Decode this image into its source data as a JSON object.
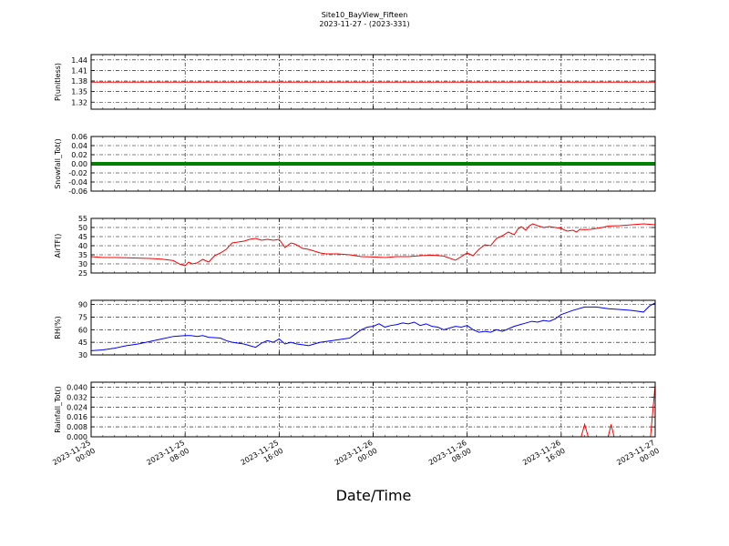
{
  "chart_data": {
    "type": "line",
    "title": "Site10_BayView_Fifteen",
    "subtitle": "2023-11-27 - (2023-331)",
    "xlabel": "Date/Time",
    "x_ticks": [
      "2023-11-25\n00:00",
      "2023-11-25\n08:00",
      "2023-11-25\n16:00",
      "2023-11-26\n00:00",
      "2023-11-26\n08:00",
      "2023-11-26\n16:00",
      "2023-11-27\n00:00"
    ],
    "x_range_hours": [
      0,
      48
    ],
    "grid": true,
    "panels": [
      {
        "ylabel": "P(unitless)",
        "ylim": [
          1.3,
          1.455
        ],
        "yticks": [
          "1.32",
          "1.35",
          "1.38",
          "1.41",
          "1.44"
        ],
        "color": "#ff0000",
        "series": [
          {
            "x": [
              0,
              48
            ],
            "y": [
              1.377,
              1.377
            ]
          }
        ]
      },
      {
        "ylabel": "Snowfall_Tot()",
        "ylim": [
          -0.06,
          0.06
        ],
        "yticks": [
          "-0.06",
          "-0.04",
          "-0.02",
          "0.00",
          "0.02",
          "0.04",
          "0.06"
        ],
        "color": "#008000",
        "marker": true,
        "series": [
          {
            "x": [
              0,
              48
            ],
            "y": [
              0.0,
              0.0
            ]
          }
        ]
      },
      {
        "ylabel": "AirTF()",
        "ylim": [
          25,
          55
        ],
        "yticks": [
          "25",
          "30",
          "35",
          "40",
          "45",
          "50",
          "55"
        ],
        "color": "#ff0000",
        "series": [
          {
            "x": [
              0,
              1,
              2,
              3,
              4,
              5,
              6,
              7,
              7.5,
              8,
              8.3,
              8.6,
              9,
              9.5,
              10,
              10.5,
              11,
              11.5,
              12,
              12.5,
              13,
              13.5,
              14,
              14.5,
              15,
              15.5,
              16,
              16.5,
              17,
              17.3,
              17.6,
              18,
              18.5,
              19,
              19.5,
              20,
              21,
              22,
              23,
              24,
              25,
              26,
              27,
              28,
              29,
              30,
              31,
              32,
              32.5,
              33,
              33.5,
              34,
              34.5,
              35,
              35.5,
              36,
              36.3,
              36.6,
              37,
              37.3,
              37.6,
              38,
              38.5,
              39,
              39.5,
              40,
              40.5,
              41,
              41.3,
              41.6,
              42,
              42.5,
              43,
              43.5,
              44,
              45,
              46,
              47,
              48
            ],
            "y": [
              34,
              33.5,
              33.5,
              33.4,
              33.2,
              33,
              32.6,
              31.8,
              30,
              29,
              31,
              30,
              30.5,
              32.5,
              31,
              34.5,
              36,
              38,
              41.5,
              42,
              42.5,
              43.5,
              44,
              43,
              43.5,
              43,
              43.5,
              39,
              41.5,
              41,
              40,
              38.5,
              38,
              37,
              36,
              35.5,
              35.5,
              35,
              34,
              33.8,
              33.5,
              34,
              34,
              34.5,
              34.8,
              34.3,
              32,
              36,
              34.5,
              38,
              40.5,
              40,
              44,
              45.5,
              47.5,
              46,
              49,
              50.5,
              48.5,
              51,
              52,
              51,
              50,
              50.5,
              50,
              49.5,
              48,
              48.5,
              47.5,
              49,
              48.8,
              49,
              49.5,
              50,
              50.8,
              51,
              51.5,
              52,
              51.5
            ]
          }
        ]
      },
      {
        "ylabel": "RH(%)",
        "ylim": [
          30,
          95
        ],
        "yticks": [
          "30",
          "45",
          "60",
          "75",
          "90"
        ],
        "color": "#0000ff",
        "series": [
          {
            "x": [
              0,
              1,
              2,
              3,
              4,
              5,
              6,
              7,
              8,
              8.5,
              9,
              9.5,
              10,
              11,
              11.5,
              12,
              13,
              13.5,
              14,
              14.5,
              15,
              15.5,
              16,
              16.5,
              17,
              17.5,
              18,
              18.5,
              19,
              19.5,
              20,
              21,
              22,
              22.5,
              23,
              23.5,
              24,
              24.5,
              25,
              25.5,
              26,
              26.5,
              27,
              27.5,
              28,
              28.5,
              29,
              29.5,
              30,
              30.5,
              31,
              31.5,
              32,
              32.5,
              33,
              33.5,
              34,
              34.5,
              35,
              35.5,
              36,
              36.5,
              37,
              37.5,
              38,
              38.5,
              39,
              39.5,
              40,
              41,
              42,
              43,
              44,
              45,
              46,
              47,
              47.5,
              48
            ],
            "y": [
              35,
              36,
              38,
              41,
              43,
              46,
              49,
              52,
              53,
              53,
              52,
              53,
              51,
              50,
              47,
              45,
              43,
              41,
              39,
              44,
              47,
              45,
              49,
              43,
              45,
              43,
              42,
              41,
              43,
              45,
              46,
              48,
              50,
              55,
              60,
              63,
              64,
              67,
              63,
              65,
              66,
              68,
              67,
              69,
              65,
              67,
              64,
              63,
              60,
              62,
              64,
              63,
              65,
              60,
              57,
              58,
              57,
              60,
              58,
              61,
              64,
              66,
              68,
              70,
              69,
              71,
              70,
              73,
              78,
              83,
              87,
              87,
              85,
              84,
              83,
              81,
              88,
              92
            ]
          }
        ]
      },
      {
        "ylabel": "Rainfall_Tot()",
        "ylim": [
          0,
          0.044
        ],
        "yticks": [
          "0.000",
          "0.008",
          "0.016",
          "0.024",
          "0.032",
          "0.040"
        ],
        "color": "#ff0000",
        "series": [
          {
            "x": [
              0,
              41.7,
              42.0,
              42.3,
              44.0,
              44.25,
              44.5,
              47.6,
              48.0
            ],
            "y": [
              0,
              0,
              0.01,
              0,
              0,
              0.01,
              0,
              0,
              0.042
            ]
          }
        ]
      }
    ]
  }
}
